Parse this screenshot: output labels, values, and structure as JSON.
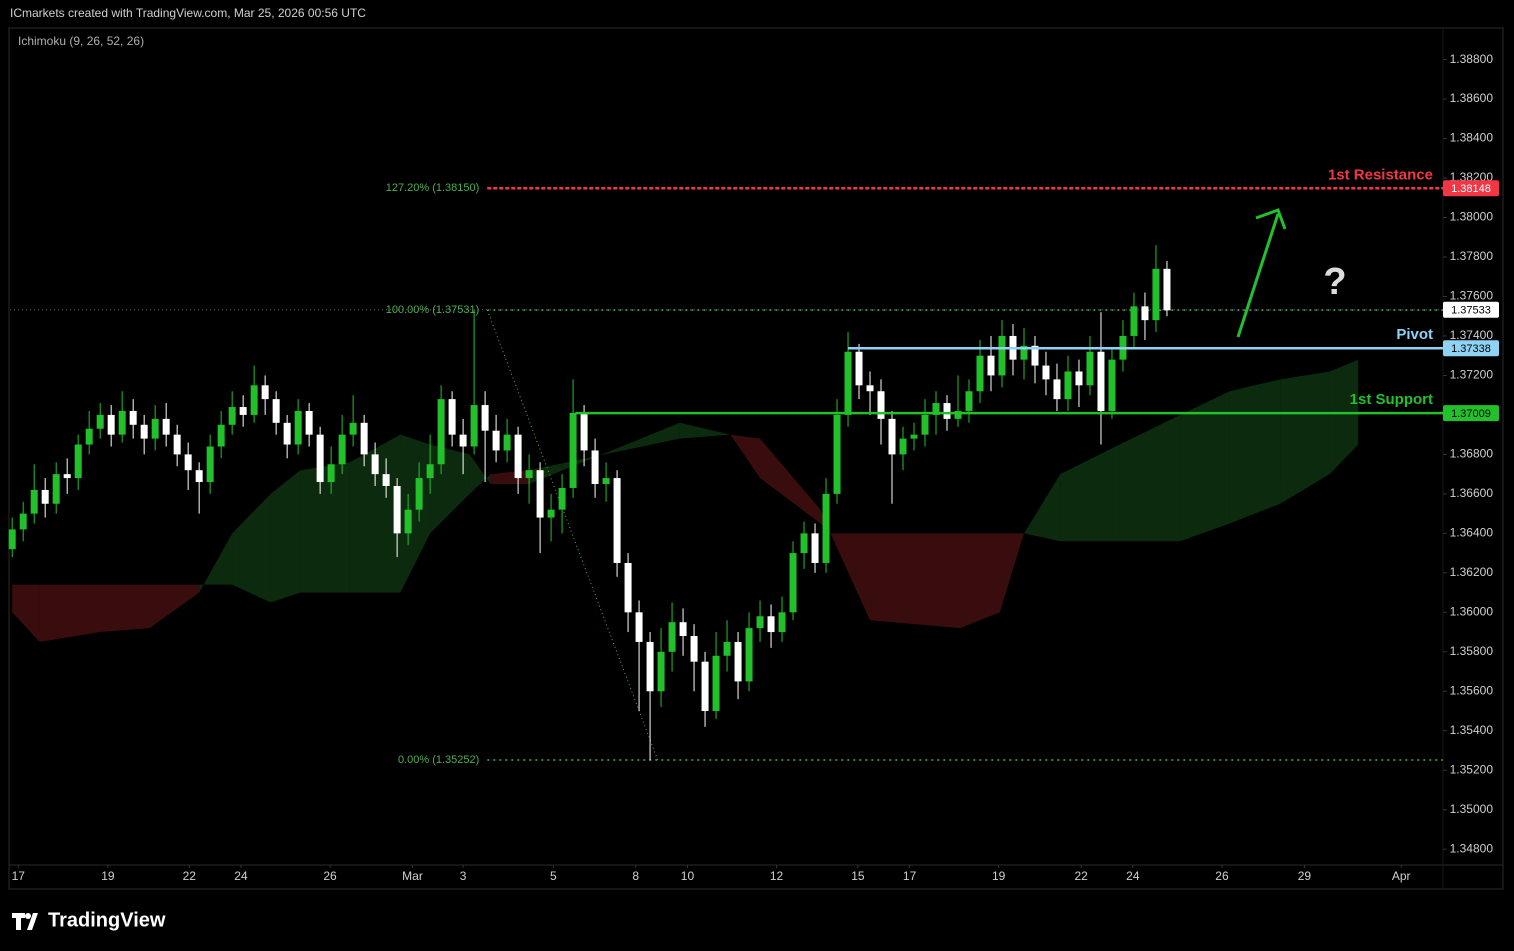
{
  "header": {
    "attribution": "ICmarkets created with TradingView.com, Mar 25, 2026 00:56 UTC",
    "indicator": "Ichimoku (9, 26, 52, 26)"
  },
  "chart_data": {
    "type": "candlestick",
    "up_color": "#22c02a",
    "down_color": "#ffffff",
    "open": [
      1.3632,
      1.3642,
      1.365,
      1.3662,
      1.3655,
      1.367,
      1.3668,
      1.3685,
      1.3693,
      1.37,
      1.369,
      1.3702,
      1.3695,
      1.3688,
      1.3698,
      1.369,
      1.368,
      1.3672,
      1.3666,
      1.3684,
      1.3695,
      1.3704,
      1.37,
      1.3715,
      1.3708,
      1.3696,
      1.3685,
      1.3702,
      1.369,
      1.3666,
      1.3675,
      1.369,
      1.3696,
      1.368,
      1.367,
      1.3664,
      1.364,
      1.3652,
      1.3668,
      1.3675,
      1.3708,
      1.369,
      1.3684,
      1.3705,
      1.3692,
      1.3682,
      1.369,
      1.3668,
      1.3672,
      1.3648,
      1.3652,
      1.3663,
      1.3701,
      1.3682,
      1.3665,
      1.3668,
      1.3625,
      1.36,
      1.3585,
      1.356,
      1.358,
      1.3595,
      1.3588,
      1.3575,
      1.355,
      1.3578,
      1.3585,
      1.3565,
      1.3592,
      1.3598,
      1.359,
      1.36,
      1.363,
      1.364,
      1.3625,
      1.366,
      1.37,
      1.3732,
      1.3715,
      1.3712,
      1.3698,
      1.368,
      1.3688,
      1.369,
      1.37,
      1.3706,
      1.3698,
      1.3702,
      1.3712,
      1.373,
      1.372,
      1.374,
      1.3728,
      1.3735,
      1.3725,
      1.3718,
      1.3708,
      1.3722,
      1.3715,
      1.3732,
      1.3702,
      1.3728,
      1.374,
      1.3755,
      1.3748,
      1.3774
    ],
    "high": [
      1.3648,
      1.3656,
      1.3675,
      1.3668,
      1.3676,
      1.3678,
      1.369,
      1.3702,
      1.3706,
      1.3705,
      1.3712,
      1.3708,
      1.37,
      1.3705,
      1.3706,
      1.3695,
      1.3686,
      1.3676,
      1.369,
      1.3702,
      1.3712,
      1.371,
      1.3725,
      1.372,
      1.3712,
      1.37,
      1.3708,
      1.3706,
      1.3694,
      1.3684,
      1.37,
      1.371,
      1.37,
      1.3686,
      1.3678,
      1.3668,
      1.366,
      1.3676,
      1.369,
      1.3715,
      1.3712,
      1.3698,
      1.3753,
      1.3712,
      1.37,
      1.3698,
      1.3694,
      1.368,
      1.3676,
      1.366,
      1.367,
      1.3718,
      1.3705,
      1.3688,
      1.3676,
      1.3672,
      1.363,
      1.3606,
      1.359,
      1.3592,
      1.3605,
      1.3602,
      1.3594,
      1.358,
      1.359,
      1.3596,
      1.359,
      1.36,
      1.3606,
      1.3604,
      1.3608,
      1.3636,
      1.3646,
      1.3645,
      1.3668,
      1.3708,
      1.3742,
      1.3736,
      1.3722,
      1.3718,
      1.3702,
      1.3694,
      1.3696,
      1.3708,
      1.3712,
      1.371,
      1.372,
      1.3718,
      1.3738,
      1.374,
      1.3748,
      1.3746,
      1.3744,
      1.374,
      1.3732,
      1.3726,
      1.373,
      1.3728,
      1.374,
      1.3752,
      1.3734,
      1.3748,
      1.3762,
      1.3762,
      1.3786,
      1.3778
    ],
    "low": [
      1.3628,
      1.3636,
      1.3645,
      1.3648,
      1.365,
      1.366,
      1.3662,
      1.368,
      1.3688,
      1.3684,
      1.3686,
      1.3688,
      1.368,
      1.3682,
      1.3684,
      1.3674,
      1.3662,
      1.365,
      1.366,
      1.3678,
      1.369,
      1.3694,
      1.3696,
      1.37,
      1.369,
      1.3678,
      1.368,
      1.3684,
      1.366,
      1.366,
      1.367,
      1.3684,
      1.3674,
      1.3664,
      1.3658,
      1.3628,
      1.3634,
      1.3646,
      1.366,
      1.367,
      1.3684,
      1.367,
      1.368,
      1.3666,
      1.3676,
      1.3676,
      1.366,
      1.3655,
      1.363,
      1.3636,
      1.364,
      1.3658,
      1.3674,
      1.3658,
      1.3656,
      1.3618,
      1.359,
      1.355,
      1.3525,
      1.3552,
      1.357,
      1.3578,
      1.356,
      1.3542,
      1.3546,
      1.357,
      1.3556,
      1.356,
      1.3585,
      1.3582,
      1.3585,
      1.3596,
      1.3622,
      1.362,
      1.362,
      1.3655,
      1.3694,
      1.3708,
      1.37,
      1.3685,
      1.3655,
      1.3672,
      1.3682,
      1.3684,
      1.369,
      1.3692,
      1.3694,
      1.3696,
      1.3706,
      1.3712,
      1.3714,
      1.372,
      1.3718,
      1.3716,
      1.371,
      1.3702,
      1.3702,
      1.3704,
      1.371,
      1.3685,
      1.3698,
      1.3722,
      1.3734,
      1.3738,
      1.3742,
      1.375
    ],
    "close": [
      1.3642,
      1.365,
      1.3662,
      1.3655,
      1.367,
      1.3668,
      1.3685,
      1.3693,
      1.37,
      1.369,
      1.3702,
      1.3695,
      1.3688,
      1.3698,
      1.369,
      1.368,
      1.3672,
      1.3666,
      1.3684,
      1.3695,
      1.3704,
      1.37,
      1.3715,
      1.3708,
      1.3696,
      1.3685,
      1.3702,
      1.369,
      1.3666,
      1.3675,
      1.369,
      1.3696,
      1.368,
      1.367,
      1.3664,
      1.364,
      1.3652,
      1.3668,
      1.3675,
      1.3708,
      1.369,
      1.3684,
      1.3705,
      1.3692,
      1.3682,
      1.369,
      1.3668,
      1.3672,
      1.3648,
      1.3652,
      1.3663,
      1.3701,
      1.3682,
      1.3665,
      1.3668,
      1.3625,
      1.36,
      1.3585,
      1.356,
      1.358,
      1.3595,
      1.3588,
      1.3575,
      1.355,
      1.3578,
      1.3585,
      1.3565,
      1.3592,
      1.3598,
      1.359,
      1.36,
      1.363,
      1.364,
      1.3625,
      1.366,
      1.37,
      1.3732,
      1.3715,
      1.3712,
      1.3698,
      1.368,
      1.3688,
      1.369,
      1.37,
      1.3706,
      1.3698,
      1.3702,
      1.3712,
      1.373,
      1.372,
      1.374,
      1.3728,
      1.3735,
      1.3725,
      1.3718,
      1.3708,
      1.3722,
      1.3715,
      1.3732,
      1.3702,
      1.3728,
      1.374,
      1.3755,
      1.3748,
      1.3774,
      1.3753
    ],
    "ylim": [
      1.3472,
      1.3896
    ],
    "yticks": [
      {
        "value": 1.388,
        "label": "1.38800"
      },
      {
        "value": 1.386,
        "label": "1.38600"
      },
      {
        "value": 1.384,
        "label": "1.38400"
      },
      {
        "value": 1.382,
        "label": "1.38200"
      },
      {
        "value": 1.38,
        "label": "1.38000"
      },
      {
        "value": 1.378,
        "label": "1.37800"
      },
      {
        "value": 1.376,
        "label": "1.37600"
      },
      {
        "value": 1.374,
        "label": "1.37400"
      },
      {
        "value": 1.372,
        "label": "1.37200"
      },
      {
        "value": 1.37,
        "label": "1.37000"
      },
      {
        "value": 1.368,
        "label": "1.36800"
      },
      {
        "value": 1.366,
        "label": "1.36600"
      },
      {
        "value": 1.364,
        "label": "1.36400"
      },
      {
        "value": 1.362,
        "label": "1.36200"
      },
      {
        "value": 1.36,
        "label": "1.36000"
      },
      {
        "value": 1.358,
        "label": "1.35800"
      },
      {
        "value": 1.356,
        "label": "1.35600"
      },
      {
        "value": 1.354,
        "label": "1.35400"
      },
      {
        "value": 1.352,
        "label": "1.35200"
      },
      {
        "value": 1.35,
        "label": "1.35000"
      },
      {
        "value": 1.348,
        "label": "1.34800"
      }
    ],
    "xlim": [
      -0.2,
      130.1
    ],
    "xticks": [
      {
        "value": 0.55,
        "label": "17"
      },
      {
        "value": 8.7,
        "label": "19"
      },
      {
        "value": 16.1,
        "label": "22"
      },
      {
        "value": 20.8,
        "label": "24"
      },
      {
        "value": 28.9,
        "label": "26"
      },
      {
        "value": 36.4,
        "label": "Mar"
      },
      {
        "value": 41,
        "label": "3"
      },
      {
        "value": 49.2,
        "label": "5"
      },
      {
        "value": 56.7,
        "label": "8"
      },
      {
        "value": 61.4,
        "label": "10"
      },
      {
        "value": 69.5,
        "label": "12"
      },
      {
        "value": 76.9,
        "label": "15"
      },
      {
        "value": 81.6,
        "label": "17"
      },
      {
        "value": 89.7,
        "label": "19"
      },
      {
        "value": 97.2,
        "label": "22"
      },
      {
        "value": 101.9,
        "label": "24"
      },
      {
        "value": 110,
        "label": "26"
      },
      {
        "value": 117.5,
        "label": "29"
      },
      {
        "value": 126.3,
        "label": "Apr"
      }
    ],
    "cloud": {
      "up_color": "#1b5e20",
      "down_color": "#7f1d1d",
      "x": [
        0,
        2.5,
        8,
        12.5,
        17,
        20,
        23.5,
        26.2,
        30.7,
        35.3,
        38,
        41.6,
        43.5,
        47,
        60.7,
        65.3,
        68,
        73.5,
        74.4,
        78,
        86.2,
        89.8,
        92,
        95.3,
        100.7,
        106.2,
        110.7,
        115.3,
        119.8,
        122.4
      ],
      "span_a": [
        1.36,
        1.3585,
        1.359,
        1.3592,
        1.361,
        1.364,
        1.366,
        1.3672,
        1.3676,
        1.369,
        1.3685,
        1.368,
        1.3665,
        1.3665,
        1.3696,
        1.369,
        1.3668,
        1.3645,
        1.364,
        1.3596,
        1.3592,
        1.36,
        1.364,
        1.367,
        1.3685,
        1.37,
        1.3712,
        1.3718,
        1.3722,
        1.3728
      ],
      "span_b": [
        1.3614,
        1.3614,
        1.3614,
        1.3614,
        1.3614,
        1.3614,
        1.3605,
        1.361,
        1.361,
        1.361,
        1.364,
        1.366,
        1.367,
        1.3672,
        1.3688,
        1.369,
        1.3688,
        1.3652,
        1.364,
        1.364,
        1.364,
        1.364,
        1.364,
        1.3636,
        1.3636,
        1.3636,
        1.3645,
        1.3655,
        1.367,
        1.3685
      ]
    },
    "fib": {
      "color": "#4caf50",
      "x": [
        43.2,
        58.7
      ],
      "levels": [
        {
          "label": "127.20% (1.38150)",
          "value": 1.3815
        },
        {
          "label": "100.00% (1.37531)",
          "value": 1.37531
        },
        {
          "label": "0.00% (1.35252)",
          "value": 1.35252
        }
      ]
    },
    "levels": [
      {
        "name": "1st Resistance",
        "value": 1.38148,
        "color": "#f23645",
        "x_start": 43.2
      },
      {
        "name": "Pivot",
        "value": 1.37338,
        "color": "#8fd3f4",
        "x_start": 76
      },
      {
        "name": "1st Support",
        "value": 1.37009,
        "color": "#22c02a",
        "x_start": 51.2
      }
    ],
    "last_price": 1.37533,
    "annotation": "?"
  },
  "footer": {
    "logo": "TradingView"
  }
}
